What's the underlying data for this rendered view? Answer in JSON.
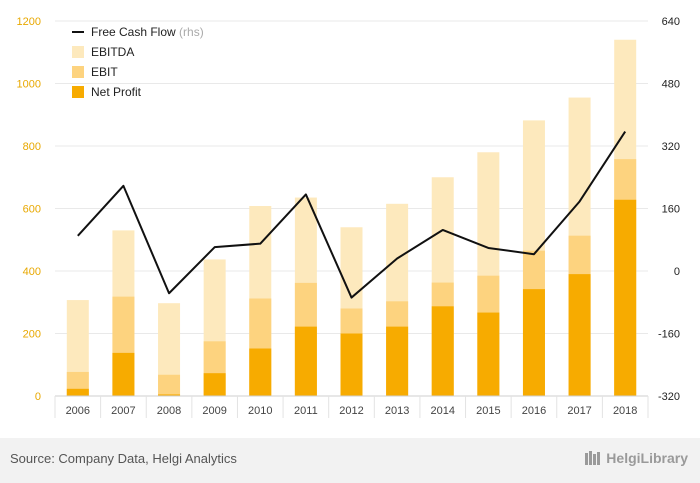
{
  "chart_data": {
    "type": "bar",
    "categories": [
      "2006",
      "2007",
      "2008",
      "2009",
      "2010",
      "2011",
      "2012",
      "2013",
      "2014",
      "2015",
      "2016",
      "2017",
      "2018"
    ],
    "series": [
      {
        "name": "EBITDA",
        "kind": "bar",
        "axis": "left",
        "color": "#fde9bd",
        "values": [
          307,
          530,
          297,
          437,
          608,
          635,
          540,
          615,
          700,
          780,
          882,
          955,
          1140
        ]
      },
      {
        "name": "EBIT",
        "kind": "bar",
        "axis": "left",
        "color": "#fdd37f",
        "values": [
          77,
          318,
          68,
          175,
          312,
          362,
          280,
          303,
          363,
          385,
          465,
          513,
          758
        ]
      },
      {
        "name": "Net Profit",
        "kind": "bar",
        "axis": "left",
        "color": "#f7ab00",
        "values": [
          23,
          138,
          5,
          73,
          152,
          222,
          200,
          222,
          287,
          267,
          342,
          390,
          628
        ]
      },
      {
        "name": "Free Cash Flow",
        "note": "(rhs)",
        "kind": "line",
        "axis": "right",
        "color": "#111111",
        "values": [
          90,
          218,
          -57,
          61,
          70,
          196,
          -68,
          32,
          105,
          59,
          43,
          178,
          357
        ]
      }
    ],
    "left_axis": {
      "ticks": [
        "0",
        "200",
        "400",
        "600",
        "800",
        "1000",
        "1200"
      ],
      "ylim": [
        0,
        1200
      ]
    },
    "right_axis": {
      "ticks": [
        "-320",
        "-160",
        "0",
        "160",
        "320",
        "480",
        "640"
      ],
      "ylim": [
        -320,
        640
      ]
    },
    "legend_position": "top-left",
    "grid": "horizontal"
  },
  "footer": {
    "source": "Source: Company Data, Helgi Analytics",
    "brand": "HelgiLibrary"
  }
}
